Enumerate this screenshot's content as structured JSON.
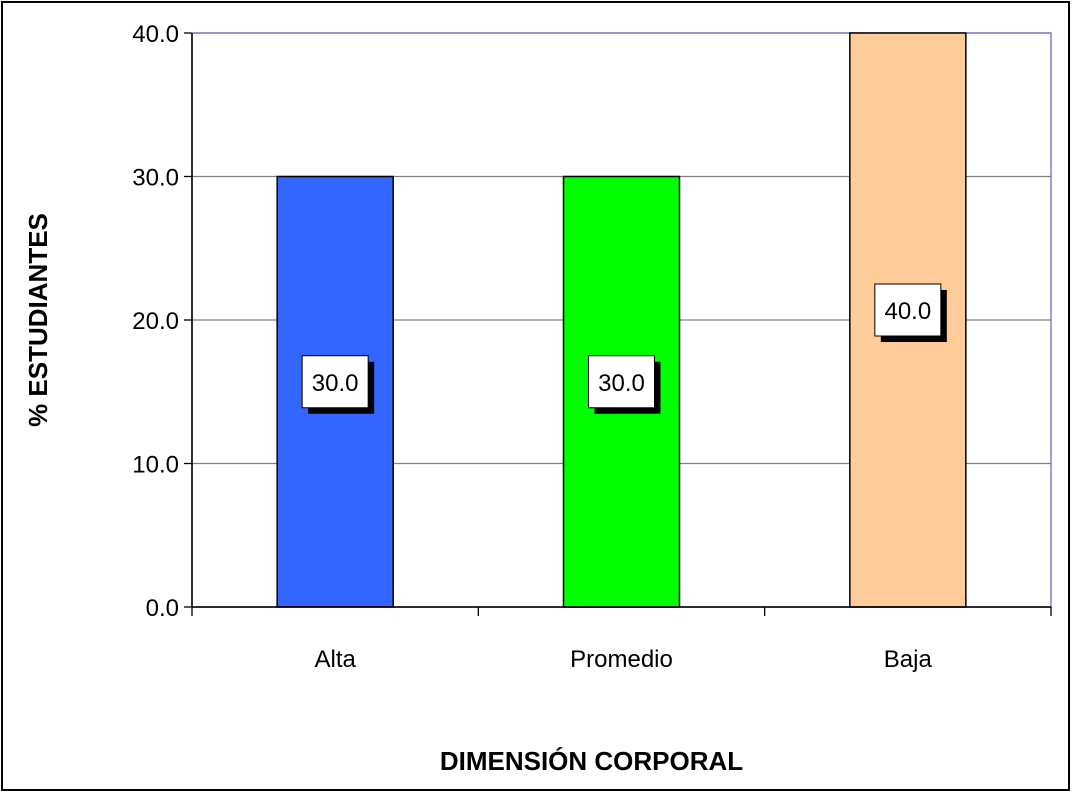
{
  "chart_data": {
    "type": "bar",
    "categories": [
      "Alta",
      "Promedio",
      "Baja"
    ],
    "values": [
      30.0,
      30.0,
      40.0
    ],
    "data_labels": [
      "30.0",
      "30.0",
      "40.0"
    ],
    "colors": [
      "#3366ff",
      "#00ff00",
      "#ffcc99"
    ],
    "xlabel": "DIMENSIÓN CORPORAL",
    "ylabel": "% ESTUDIANTES",
    "ylim": [
      0,
      40
    ],
    "yticks": [
      "0.0",
      "10.0",
      "20.0",
      "30.0",
      "40.0"
    ],
    "grid": true,
    "legend": "none",
    "plot_border_color": "#8080c0",
    "gridline_color": "#808080"
  }
}
